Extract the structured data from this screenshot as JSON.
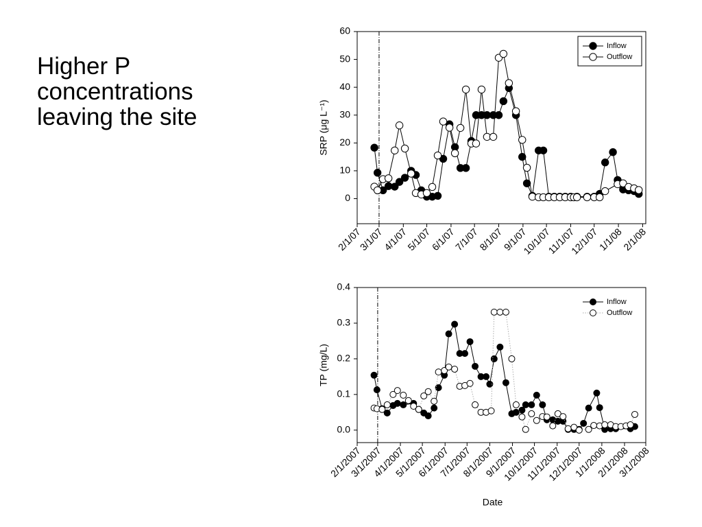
{
  "slide_text": [
    "Higher P",
    "concentrations",
    "leaving the site"
  ],
  "chart_data": [
    {
      "type": "line",
      "y_label": "SRP (μg L⁻¹)",
      "xlim": [
        "2007-02-01",
        "2008-02-05"
      ],
      "ylim": [
        -9,
        60
      ],
      "yticks": [
        0,
        10,
        20,
        30,
        40,
        50,
        60
      ],
      "xticks": [
        {
          "value": "2007-02-01",
          "label": "2/1/07"
        },
        {
          "value": "2007-03-01",
          "label": "3/1/07"
        },
        {
          "value": "2007-04-01",
          "label": "4/1/07"
        },
        {
          "value": "2007-05-01",
          "label": "5/1/07"
        },
        {
          "value": "2007-06-01",
          "label": "6/1/07"
        },
        {
          "value": "2007-07-01",
          "label": "7/1/07"
        },
        {
          "value": "2007-08-01",
          "label": "8/1/07"
        },
        {
          "value": "2007-09-01",
          "label": "9/1/07"
        },
        {
          "value": "2007-10-01",
          "label": "10/1/07"
        },
        {
          "value": "2007-11-01",
          "label": "11/1/07"
        },
        {
          "value": "2007-12-01",
          "label": "12/1/07"
        },
        {
          "value": "2008-01-01",
          "label": "1/1/08"
        },
        {
          "value": "2008-02-01",
          "label": "2/1/08"
        }
      ],
      "vline": "2007-03-01",
      "legend": "upper right",
      "legend_box": true,
      "series": [
        {
          "name": "Inflow",
          "color": "#000000",
          "line_color": "#000000",
          "line_style": "solid",
          "x": [
            "2007-02-23",
            "2007-02-27",
            "2007-03-06",
            "2007-03-13",
            "2007-03-21",
            "2007-03-27",
            "2007-04-03",
            "2007-04-11",
            "2007-04-17",
            "2007-04-24",
            "2007-05-01",
            "2007-05-08",
            "2007-05-15",
            "2007-05-22",
            "2007-05-30",
            "2007-06-06",
            "2007-06-13",
            "2007-06-20",
            "2007-06-27",
            "2007-07-03",
            "2007-07-10",
            "2007-07-17",
            "2007-07-25",
            "2007-08-01",
            "2007-08-07",
            "2007-08-14",
            "2007-08-23",
            "2007-08-31",
            "2007-09-06",
            "2007-09-13",
            "2007-09-21",
            "2007-09-27",
            "2007-10-04",
            "2007-10-11",
            "2007-10-18",
            "2007-10-25",
            "2007-11-01",
            "2007-11-09",
            "2007-11-22",
            "2007-12-01",
            "2007-12-08",
            "2007-12-15",
            "2007-12-25",
            "2007-12-31",
            "2008-01-07",
            "2008-01-14",
            "2008-01-21",
            "2008-01-27"
          ],
          "values": [
            18.3,
            9.3,
            3,
            4.5,
            4.3,
            6,
            7.5,
            10,
            8.5,
            3,
            0.7,
            0.7,
            1,
            14.3,
            26.7,
            18.5,
            11,
            11,
            20.7,
            30,
            30,
            30,
            30,
            30,
            35,
            39.7,
            30,
            15,
            5.5,
            1,
            17.3,
            17.3,
            0.7,
            0.7,
            0.7,
            0.7,
            0.7,
            0.7,
            0.7,
            0.7,
            1.7,
            13,
            16.7,
            6.7,
            3.3,
            3,
            2.7,
            1.7
          ]
        },
        {
          "name": "Outflow",
          "color": "#ffffff",
          "line_color": "#000000",
          "line_style": "solid",
          "x": [
            "2007-02-23",
            "2007-02-27",
            "2007-03-06",
            "2007-03-13",
            "2007-03-21",
            "2007-03-27",
            "2007-04-03",
            "2007-04-11",
            "2007-04-17",
            "2007-04-24",
            "2007-05-01",
            "2007-05-08",
            "2007-05-15",
            "2007-05-22",
            "2007-05-30",
            "2007-06-06",
            "2007-06-13",
            "2007-06-20",
            "2007-06-27",
            "2007-07-03",
            "2007-07-10",
            "2007-07-17",
            "2007-07-25",
            "2007-08-01",
            "2007-08-07",
            "2007-08-14",
            "2007-08-23",
            "2007-08-31",
            "2007-09-06",
            "2007-09-13",
            "2007-09-21",
            "2007-09-27",
            "2007-10-04",
            "2007-10-11",
            "2007-10-18",
            "2007-10-25",
            "2007-11-01",
            "2007-11-05",
            "2007-11-09",
            "2007-11-22",
            "2007-12-01",
            "2007-12-08",
            "2007-12-15",
            "2007-12-31",
            "2008-01-07",
            "2008-01-14",
            "2008-01-21",
            "2008-01-27"
          ],
          "values": [
            4.3,
            3,
            7,
            7.3,
            17.3,
            26.3,
            18,
            9,
            2,
            1.5,
            2,
            4.2,
            15.5,
            27.7,
            25.5,
            16.3,
            25.4,
            39.2,
            19.8,
            19.8,
            39.2,
            22.2,
            22.2,
            50.6,
            52,
            41.5,
            31.4,
            21.1,
            11.1,
            0.7,
            0.5,
            0.5,
            0.5,
            0.5,
            0.5,
            0.5,
            0.5,
            0.5,
            0.5,
            0.5,
            0.5,
            0.5,
            2.7,
            5.2,
            5.5,
            4.2,
            3.7,
            3.1
          ]
        }
      ]
    },
    {
      "type": "line",
      "y_label": "TP (mg/L)",
      "x_label": "Date",
      "xlim": [
        "2007-02-01",
        "2008-03-01"
      ],
      "ylim": [
        -0.035,
        0.4
      ],
      "yticks": [
        {
          "value": 0,
          "label": "0.0"
        },
        0.1,
        0.2,
        0.3,
        0.4
      ],
      "xticks": [
        {
          "value": "2007-02-01",
          "label": "2/1/2007"
        },
        {
          "value": "2007-03-01",
          "label": "3/1/2007"
        },
        {
          "value": "2007-04-01",
          "label": "4/1/2007"
        },
        {
          "value": "2007-05-01",
          "label": "5/1/2007"
        },
        {
          "value": "2007-06-01",
          "label": "6/1/2007"
        },
        {
          "value": "2007-07-01",
          "label": "7/1/2007"
        },
        {
          "value": "2007-08-01",
          "label": "8/1/2007"
        },
        {
          "value": "2007-09-01",
          "label": "9/1/2007"
        },
        {
          "value": "2007-10-01",
          "label": "10/1/2007"
        },
        {
          "value": "2007-11-01",
          "label": "11/1/2007"
        },
        {
          "value": "2007-12-01",
          "label": "12/1/2007"
        },
        {
          "value": "2008-01-01",
          "label": "1/1/2008"
        },
        {
          "value": "2008-02-01",
          "label": "2/1/2008"
        },
        {
          "value": "2008-03-01",
          "label": "3/1/2008"
        }
      ],
      "vline": "2007-03-01",
      "legend": "upper right",
      "legend_box": false,
      "series": [
        {
          "name": "Inflow",
          "color": "#000000",
          "line_color": "#000000",
          "line_style": "solid",
          "x": [
            "2007-02-24",
            "2007-02-28",
            "2007-03-07",
            "2007-03-14",
            "2007-03-22",
            "2007-03-28",
            "2007-04-05",
            "2007-04-19",
            "2007-04-26",
            "2007-05-03",
            "2007-05-09",
            "2007-05-17",
            "2007-05-23",
            "2007-05-31",
            "2007-06-06",
            "2007-06-14",
            "2007-06-21",
            "2007-06-28",
            "2007-07-05",
            "2007-07-12",
            "2007-07-20",
            "2007-07-27",
            "2007-08-01",
            "2007-08-07",
            "2007-08-15",
            "2007-08-23",
            "2007-08-31",
            "2007-09-06",
            "2007-09-14",
            "2007-09-19",
            "2007-09-27",
            "2007-10-04",
            "2007-10-12",
            "2007-10-18",
            "2007-10-26",
            "2007-11-02",
            "2007-11-09",
            "2007-11-16",
            "2007-11-24",
            "2007-12-01",
            "2007-12-07",
            "2007-12-14",
            "2007-12-25",
            "2007-12-29",
            "2008-01-05",
            "2008-01-13",
            "2008-01-20",
            "2008-02-09",
            "2008-02-15"
          ],
          "values": [
            0.154,
            0.113,
            0.06,
            0.048,
            0.069,
            0.075,
            0.071,
            0.075,
            0.058,
            0.048,
            0.04,
            0.062,
            0.119,
            0.154,
            0.27,
            0.297,
            0.215,
            0.215,
            0.248,
            0.179,
            0.15,
            0.15,
            0.129,
            0.2,
            0.233,
            0.133,
            0.046,
            0.05,
            0.056,
            0.071,
            0.071,
            0.098,
            0.071,
            0.029,
            0.029,
            0.025,
            0.025,
            0.002,
            0.002,
            0.002,
            0.019,
            0.062,
            0.104,
            0.063,
            0.002,
            0.004,
            0.004,
            0.004,
            0.01
          ]
        },
        {
          "name": "Outflow",
          "color": "#ffffff",
          "line_color": "#aaaaaa",
          "line_style": "dotted",
          "x": [
            "2007-02-24",
            "2007-02-28",
            "2007-03-07",
            "2007-03-14",
            "2007-03-22",
            "2007-03-28",
            "2007-04-05",
            "2007-04-12",
            "2007-04-19",
            "2007-04-26",
            "2007-05-03",
            "2007-05-09",
            "2007-05-17",
            "2007-05-23",
            "2007-05-31",
            "2007-06-06",
            "2007-06-14",
            "2007-06-21",
            "2007-06-28",
            "2007-07-05",
            "2007-07-12",
            "2007-07-20",
            "2007-07-27",
            "2007-08-03",
            "2007-08-07",
            "2007-08-15",
            "2007-08-23",
            "2007-08-31",
            "2007-09-06",
            "2007-09-14",
            "2007-09-19",
            "2007-09-27",
            "2007-10-04",
            "2007-10-12",
            "2007-10-18",
            "2007-10-26",
            "2007-11-02",
            "2007-11-09",
            "2007-11-16",
            "2007-11-24",
            "2007-12-01",
            "2007-12-14",
            "2007-12-21",
            "2007-12-29",
            "2008-01-05",
            "2008-01-13",
            "2008-01-20",
            "2008-01-27",
            "2008-02-03",
            "2008-02-09",
            "2008-02-15"
          ],
          "values": [
            0.062,
            0.06,
            0.058,
            0.071,
            0.1,
            0.111,
            0.098,
            0.083,
            0.067,
            0.058,
            0.096,
            0.108,
            0.081,
            0.163,
            0.167,
            0.177,
            0.171,
            0.123,
            0.125,
            0.131,
            0.071,
            0.05,
            0.05,
            0.054,
            0.331,
            0.331,
            0.331,
            0.2,
            0.071,
            0.037,
            0.002,
            0.046,
            0.027,
            0.038,
            0.037,
            0.012,
            0.046,
            0.038,
            0.004,
            0.008,
            0,
            0.002,
            0.013,
            0.012,
            0.015,
            0.015,
            0.01,
            0.01,
            0.012,
            0.015,
            0.044
          ]
        }
      ]
    }
  ]
}
